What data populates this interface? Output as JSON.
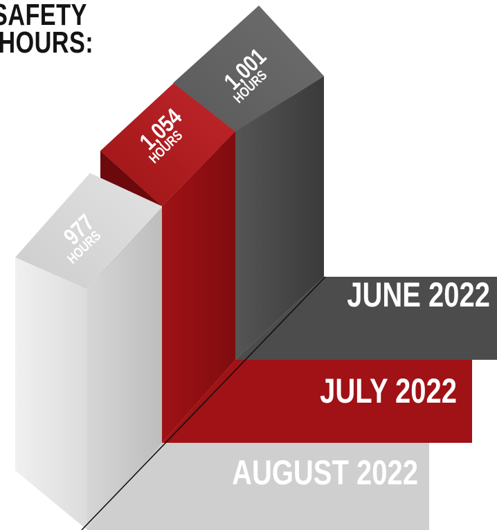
{
  "title_lines": [
    "SAFETY",
    "HOURS:"
  ],
  "chart_data": {
    "type": "bar",
    "categories": [
      "JUNE 2022",
      "JULY 2022",
      "AUGUST 2022"
    ],
    "values": [
      1001,
      1054,
      977
    ],
    "value_labels": [
      "1,001",
      "1,054",
      "977"
    ],
    "unit_label": "HOURS",
    "colors": {
      "JUNE 2022": "#4d4d4d",
      "JULY 2022": "#a01215",
      "AUGUST 2022": "#cfcfcf"
    }
  }
}
